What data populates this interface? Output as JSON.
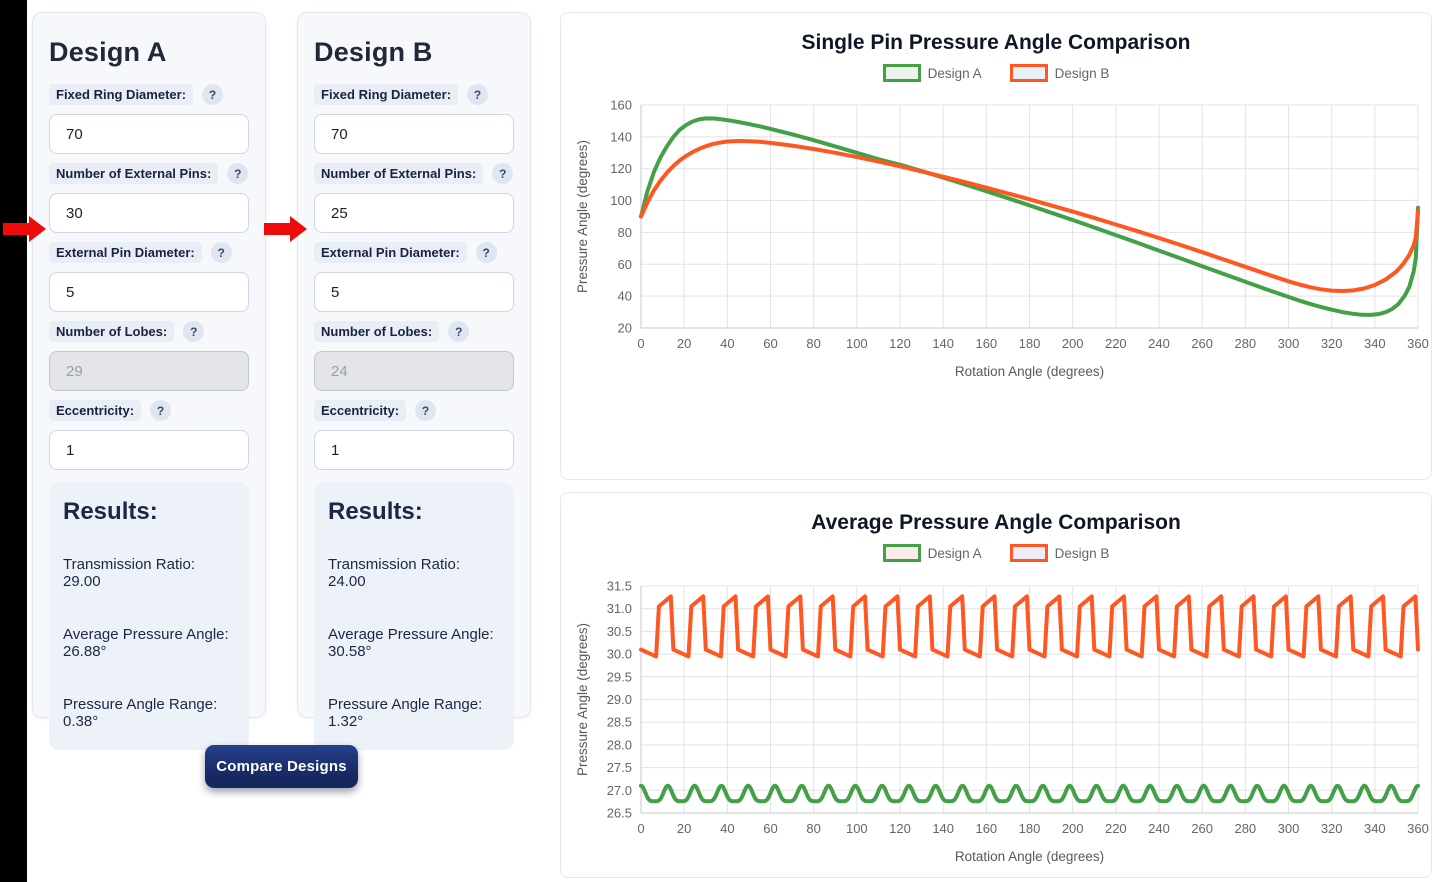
{
  "ui": {
    "help_icon": "?",
    "compare_button_label": "Compare Designs",
    "accent_colors": {
      "design_a_green": "#43a047",
      "design_b_orange": "#ff5722",
      "button_navy": "#16265e",
      "arrow_red": "#ee0b0b",
      "left_strip": "#000000"
    }
  },
  "designs": [
    {
      "title": "Design A",
      "fields": [
        {
          "label": "Fixed Ring Diameter:",
          "value": "70",
          "disabled": false,
          "highlighted": false
        },
        {
          "label": "Number of External Pins:",
          "value": "30",
          "disabled": false,
          "highlighted": true
        },
        {
          "label": "External Pin Diameter:",
          "value": "5",
          "disabled": false,
          "highlighted": false
        },
        {
          "label": "Number of Lobes:",
          "value": "29",
          "disabled": true,
          "highlighted": false
        },
        {
          "label": "Eccentricity:",
          "value": "1",
          "disabled": false,
          "highlighted": false
        }
      ],
      "results": {
        "heading": "Results:",
        "lines": [
          "Transmission Ratio: 29.00",
          "Average Pressure Angle: 26.88°",
          "Pressure Angle Range: 0.38°"
        ]
      }
    },
    {
      "title": "Design B",
      "fields": [
        {
          "label": "Fixed Ring Diameter:",
          "value": "70",
          "disabled": false,
          "highlighted": false
        },
        {
          "label": "Number of External Pins:",
          "value": "25",
          "disabled": false,
          "highlighted": true
        },
        {
          "label": "External Pin Diameter:",
          "value": "5",
          "disabled": false,
          "highlighted": false
        },
        {
          "label": "Number of Lobes:",
          "value": "24",
          "disabled": true,
          "highlighted": false
        },
        {
          "label": "Eccentricity:",
          "value": "1",
          "disabled": false,
          "highlighted": false
        }
      ],
      "results": {
        "heading": "Results:",
        "lines": [
          "Transmission Ratio: 24.00",
          "Average Pressure Angle: 30.58°",
          "Pressure Angle Range: 1.32°"
        ]
      }
    }
  ],
  "chart_data": [
    {
      "type": "line",
      "title": "Single Pin Pressure Angle Comparison",
      "xlabel": "Rotation Angle (degrees)",
      "ylabel": "Pressure Angle (degrees)",
      "xlim": [
        0,
        360
      ],
      "ylim": [
        20,
        160
      ],
      "xticks": [
        0,
        20,
        40,
        60,
        80,
        100,
        120,
        140,
        160,
        180,
        200,
        220,
        240,
        260,
        280,
        300,
        320,
        340,
        360
      ],
      "yticks": [
        20,
        40,
        60,
        80,
        100,
        120,
        140,
        160
      ],
      "ytick_decimals": 0,
      "grid": true,
      "legend_position": "top",
      "legend": [
        {
          "label": "Design A",
          "color": "#43a047",
          "fill": "#ebf3ea"
        },
        {
          "label": "Design B",
          "color": "#ff5722",
          "fill": "#e8f0f8"
        }
      ],
      "series": [
        {
          "name": "Design A",
          "color": "#43a047",
          "points": [
            [
              0,
              90
            ],
            [
              3,
              106
            ],
            [
              6,
              118
            ],
            [
              9,
              127
            ],
            [
              12,
              134
            ],
            [
              15,
              140
            ],
            [
              18,
              144.5
            ],
            [
              21,
              147.5
            ],
            [
              24,
              149.7
            ],
            [
              27,
              151
            ],
            [
              30,
              151.6
            ],
            [
              34,
              151.5
            ],
            [
              38,
              150.9
            ],
            [
              42,
              150.1
            ],
            [
              46,
              149.1
            ],
            [
              50,
              148
            ],
            [
              55,
              146.6
            ],
            [
              60,
              145
            ],
            [
              70,
              141.6
            ],
            [
              80,
              137.9
            ],
            [
              90,
              134
            ],
            [
              100,
              130
            ],
            [
              110,
              126
            ],
            [
              120,
              122.5
            ],
            [
              130,
              118.5
            ],
            [
              140,
              114.4
            ],
            [
              150,
              110.2
            ],
            [
              160,
              105.9
            ],
            [
              170,
              101.5
            ],
            [
              180,
              97
            ],
            [
              190,
              92.4
            ],
            [
              200,
              87.8
            ],
            [
              210,
              83.1
            ],
            [
              220,
              78.3
            ],
            [
              230,
              73.5
            ],
            [
              240,
              68.6
            ],
            [
              250,
              63.7
            ],
            [
              260,
              58.8
            ],
            [
              270,
              53.9
            ],
            [
              280,
              49
            ],
            [
              290,
              44.2
            ],
            [
              300,
              39.5
            ],
            [
              305,
              37.2
            ],
            [
              310,
              35.1
            ],
            [
              315,
              33.2
            ],
            [
              320,
              31.5
            ],
            [
              325,
              30
            ],
            [
              330,
              28.9
            ],
            [
              334,
              28.3
            ],
            [
              338,
              28.2
            ],
            [
              342,
              28.8
            ],
            [
              345,
              29.9
            ],
            [
              348,
              31.9
            ],
            [
              351,
              35.2
            ],
            [
              354,
              40.5
            ],
            [
              356,
              46
            ],
            [
              358,
              55.5
            ],
            [
              359,
              64
            ],
            [
              360,
              95.5
            ]
          ]
        },
        {
          "name": "Design B",
          "color": "#ff5722",
          "points": [
            [
              0,
              90
            ],
            [
              3,
              99
            ],
            [
              6,
              106.5
            ],
            [
              9,
              112.5
            ],
            [
              12,
              117.5
            ],
            [
              15,
              121.7
            ],
            [
              18,
              125.2
            ],
            [
              21,
              128.1
            ],
            [
              24,
              130.5
            ],
            [
              27,
              132.5
            ],
            [
              30,
              134.1
            ],
            [
              33,
              135.4
            ],
            [
              36,
              136.3
            ],
            [
              40,
              137.1
            ],
            [
              45,
              137.4
            ],
            [
              50,
              137.3
            ],
            [
              55,
              136.9
            ],
            [
              60,
              136.2
            ],
            [
              70,
              134.5
            ],
            [
              80,
              132.4
            ],
            [
              90,
              130
            ],
            [
              100,
              127.3
            ],
            [
              110,
              124.5
            ],
            [
              120,
              121.5
            ],
            [
              130,
              118.3
            ],
            [
              140,
              115
            ],
            [
              150,
              111.6
            ],
            [
              160,
              108.1
            ],
            [
              170,
              104.5
            ],
            [
              180,
              100.8
            ],
            [
              190,
              97
            ],
            [
              200,
              93.1
            ],
            [
              210,
              89.1
            ],
            [
              220,
              85
            ],
            [
              230,
              80.8
            ],
            [
              240,
              76.5
            ],
            [
              250,
              72.1
            ],
            [
              260,
              67.6
            ],
            [
              270,
              63
            ],
            [
              280,
              58.4
            ],
            [
              290,
              53.8
            ],
            [
              295,
              51.5
            ],
            [
              300,
              49.3
            ],
            [
              305,
              47.3
            ],
            [
              310,
              45.6
            ],
            [
              315,
              44.3
            ],
            [
              320,
              43.5
            ],
            [
              325,
              43.2
            ],
            [
              330,
              43.6
            ],
            [
              335,
              44.8
            ],
            [
              340,
              47
            ],
            [
              345,
              50.4
            ],
            [
              350,
              55.5
            ],
            [
              353,
              59.9
            ],
            [
              356,
              66
            ],
            [
              358,
              72
            ],
            [
              359,
              77
            ],
            [
              360,
              93.5
            ]
          ]
        }
      ]
    },
    {
      "type": "line",
      "title": "Average Pressure Angle Comparison",
      "xlabel": "Rotation Angle (degrees)",
      "ylabel": "Pressure Angle (degrees)",
      "xlim": [
        0,
        360
      ],
      "ylim": [
        26.5,
        31.5
      ],
      "xticks": [
        0,
        20,
        40,
        60,
        80,
        100,
        120,
        140,
        160,
        180,
        200,
        220,
        240,
        260,
        280,
        300,
        320,
        340,
        360
      ],
      "yticks": [
        26.5,
        27.0,
        27.5,
        28.0,
        28.5,
        29.0,
        29.5,
        30.0,
        30.5,
        31.0,
        31.5
      ],
      "ytick_decimals": 1,
      "grid": true,
      "legend_position": "top",
      "legend": [
        {
          "label": "Design A",
          "color": "#43a047",
          "fill": "#f9ede7"
        },
        {
          "label": "Design B",
          "color": "#ff5722",
          "fill": "#f0ebf8"
        }
      ],
      "series": [
        {
          "name": "Design A",
          "color": "#43a047",
          "waveform": {
            "kind": "scallop",
            "period_deg": 12.4138,
            "min": 26.76,
            "max": 27.1,
            "sharpness": 2.2
          }
        },
        {
          "name": "Design B",
          "color": "#ff5722",
          "waveform": {
            "kind": "piecewise",
            "period_deg": 15,
            "breakpoints": [
              [
                0,
                30.1
              ],
              [
                7,
                29.95
              ],
              [
                8.3,
                31.05
              ],
              [
                13.8,
                31.27
              ],
              [
                15,
                30.1
              ]
            ]
          }
        }
      ]
    }
  ]
}
